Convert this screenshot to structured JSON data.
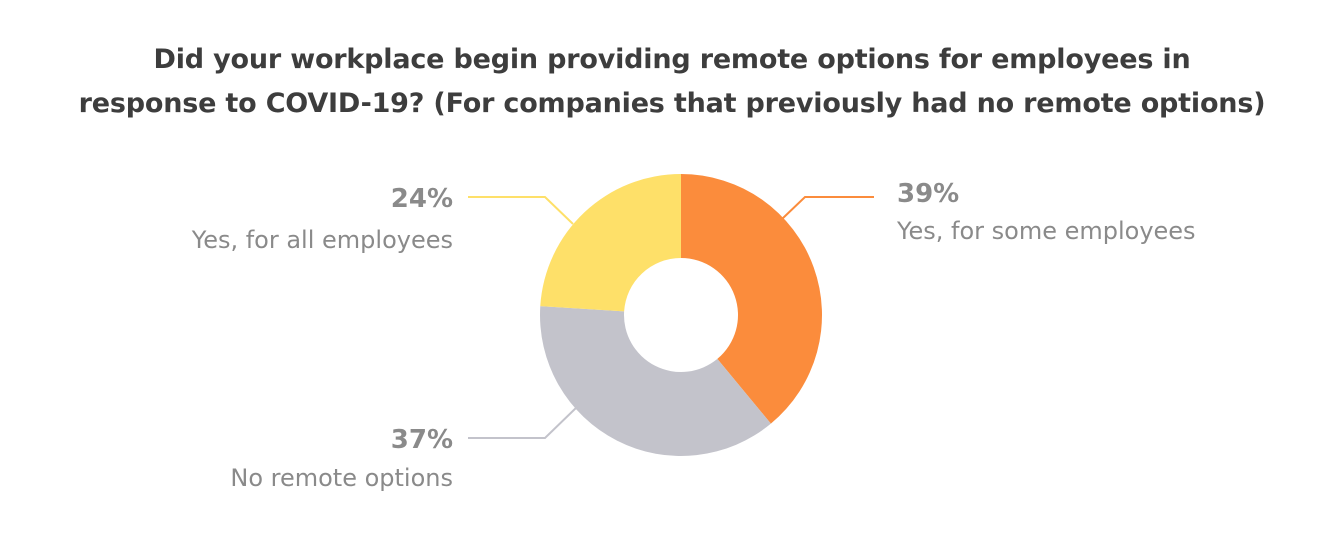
{
  "chart_data": {
    "type": "pie",
    "donut": true,
    "title_lines": [
      "Did your workplace begin providing remote options for employees in",
      "response to COVID-19? (For companies that previously had no remote options)"
    ],
    "slices": [
      {
        "label": "Yes, for some employees",
        "value": 39,
        "value_label": "39%",
        "color": "#fb8c3c"
      },
      {
        "label": "No remote options",
        "value": 37,
        "value_label": "37%",
        "color": "#c3c3cb"
      },
      {
        "label": "Yes, for all employees",
        "value": 24,
        "value_label": "24%",
        "color": "#fee069"
      }
    ]
  }
}
